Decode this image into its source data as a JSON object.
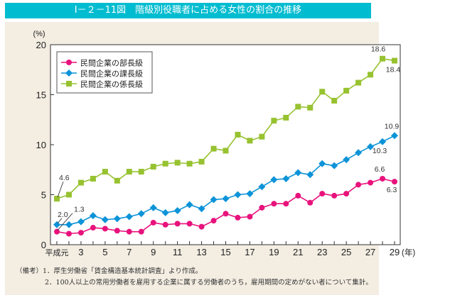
{
  "header": {
    "title": "Ⅰ－２－11図　階級別役職者に占める女性の割合の推移"
  },
  "notes": {
    "prefix": "（備考）",
    "line1": "1．厚生労働省「賃金構造基本統計調査」より作成。",
    "line2": "2．100人以上の常用労働者を雇用する企業に属する労働者のうち，雇用期間の定めがない者について集計。"
  },
  "chart_data": {
    "type": "line",
    "title": "階級別役職者に占める女性の割合の推移",
    "xlabel": "(年)",
    "ylabel": "(%)",
    "ylim": [
      0,
      20
    ],
    "yticks": [
      0,
      5,
      10,
      15,
      20
    ],
    "x": [
      "平成元",
      "2",
      "3",
      "4",
      "5",
      "6",
      "7",
      "8",
      "9",
      "10",
      "11",
      "12",
      "13",
      "14",
      "15",
      "16",
      "17",
      "18",
      "19",
      "20",
      "21",
      "22",
      "23",
      "24",
      "25",
      "26",
      "27",
      "28",
      "29"
    ],
    "xtick_labels": [
      "平成元",
      "",
      "3",
      "",
      "5",
      "",
      "7",
      "",
      "9",
      "",
      "11",
      "",
      "13",
      "",
      "15",
      "",
      "17",
      "",
      "19",
      "",
      "21",
      "",
      "23",
      "",
      "25",
      "",
      "27",
      "",
      "29"
    ],
    "legend_position": "top-left",
    "grid": false,
    "series": [
      {
        "name": "民間企業の部長級",
        "color": "#e8127c",
        "marker": "circle",
        "values": [
          1.3,
          1.1,
          1.2,
          1.7,
          1.6,
          1.4,
          1.3,
          1.3,
          2.2,
          2.0,
          2.1,
          2.1,
          1.8,
          2.4,
          3.1,
          2.7,
          2.8,
          3.7,
          4.1,
          4.1,
          4.9,
          4.2,
          5.1,
          4.9,
          5.1,
          6.0,
          6.2,
          6.6,
          6.3
        ]
      },
      {
        "name": "民間企業の課長級",
        "color": "#0c93d8",
        "marker": "diamond",
        "values": [
          2.0,
          2.0,
          2.3,
          2.9,
          2.5,
          2.6,
          2.8,
          3.1,
          3.7,
          3.2,
          3.4,
          4.0,
          3.6,
          4.5,
          4.6,
          5.0,
          5.1,
          5.8,
          6.5,
          6.6,
          7.2,
          7.0,
          8.1,
          7.9,
          8.5,
          9.2,
          9.8,
          10.3,
          10.9
        ]
      },
      {
        "name": "民間企業の係長級",
        "color": "#97c230",
        "marker": "square",
        "values": [
          4.6,
          5.0,
          6.2,
          6.6,
          7.3,
          6.4,
          7.3,
          7.3,
          7.8,
          8.1,
          8.2,
          8.1,
          8.3,
          9.6,
          9.4,
          11.0,
          10.4,
          10.8,
          12.4,
          12.7,
          13.8,
          13.7,
          15.3,
          14.4,
          15.4,
          16.2,
          17.0,
          18.6,
          18.4
        ]
      }
    ],
    "annotations": [
      {
        "series": 2,
        "index": 0,
        "text": "4.6"
      },
      {
        "series": 1,
        "index": 0,
        "text": "2.0"
      },
      {
        "series": 0,
        "index": 0,
        "text": "1.3"
      },
      {
        "series": 2,
        "index": 27,
        "text": "18.6"
      },
      {
        "series": 2,
        "index": 28,
        "text": "18.4"
      },
      {
        "series": 1,
        "index": 28,
        "text": "10.9"
      },
      {
        "series": 1,
        "index": 27,
        "text": "10.3"
      },
      {
        "series": 0,
        "index": 27,
        "text": "6.6"
      },
      {
        "series": 0,
        "index": 28,
        "text": "6.3"
      }
    ]
  }
}
